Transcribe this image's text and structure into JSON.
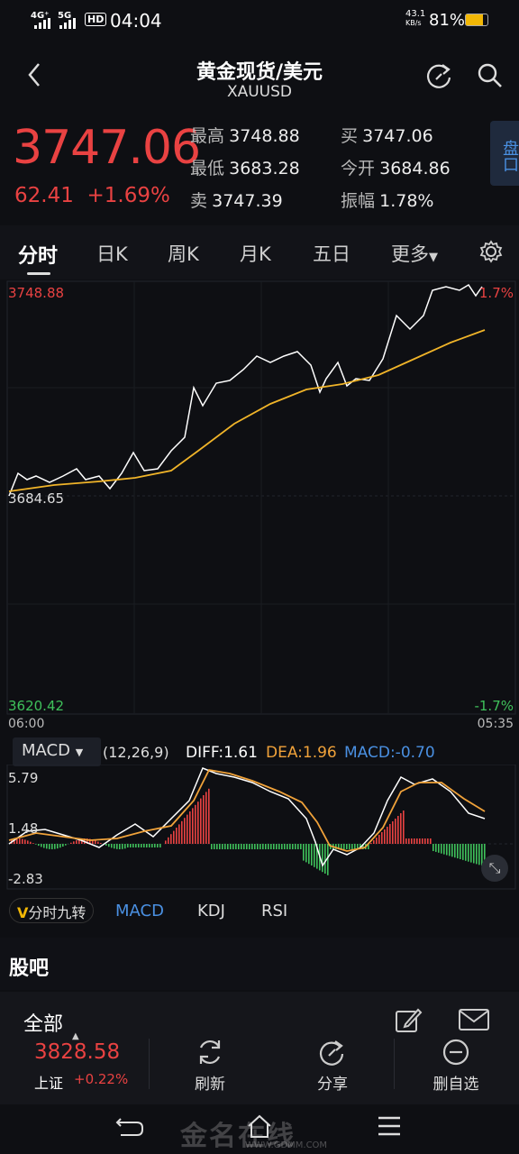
{
  "status": {
    "network1": "4G⁺",
    "network2": "5G",
    "hd": "HD",
    "time": "04:04",
    "speed_top": "43.1",
    "speed_unit": "KB/s",
    "battery": "81%"
  },
  "header": {
    "title": "黄金现货/美元",
    "symbol": "XAUUSD"
  },
  "quote": {
    "price": "3747.06",
    "change": "62.41",
    "change_pct": "+1.69%",
    "high_label": "最高",
    "high": "3748.88",
    "low_label": "最低",
    "low": "3683.28",
    "sell_label": "卖",
    "sell": "3747.39",
    "buy_label": "买",
    "buy": "3747.06",
    "open_label": "今开",
    "open": "3684.86",
    "amp_label": "振幅",
    "amp": "1.78%",
    "panel_label": "盘口"
  },
  "tabs": [
    {
      "label": "分时"
    },
    {
      "label": "日K"
    },
    {
      "label": "周K"
    },
    {
      "label": "月K"
    },
    {
      "label": "五日"
    },
    {
      "label": "更多"
    }
  ],
  "chart": {
    "y_top": "3748.88",
    "y_mid": "3684.65",
    "y_bottom": "3620.42",
    "pct_top": "1.7%",
    "pct_bottom": "-1.7%",
    "time_start": "06:00",
    "time_end": "05:35"
  },
  "macd": {
    "indicator": "MACD",
    "params": "(12,26,9)",
    "diff": "DIFF:1.61",
    "dea": "DEA:1.96",
    "macd": "MACD:-0.70",
    "y_top": "5.79",
    "y_mid": "1.48",
    "y_bottom": "-2.83"
  },
  "indicator_tabs": [
    {
      "label": "分时九转"
    },
    {
      "label": "MACD"
    },
    {
      "label": "KDJ"
    },
    {
      "label": "RSI"
    }
  ],
  "guba": {
    "title": "股吧"
  },
  "bottom": {
    "filter": "全部",
    "index_value": "3828.58",
    "index_name": "上证",
    "index_change": "+0.22%",
    "refresh": "刷新",
    "share": "分享",
    "remove": "删自选"
  },
  "watermark": {
    "text": "金名在线",
    "url": "WWW.GDMM.COM"
  },
  "colors": {
    "up": "#e94242",
    "down": "#3fc15b",
    "avg": "#f0b429",
    "accent": "#4a90e2"
  }
}
